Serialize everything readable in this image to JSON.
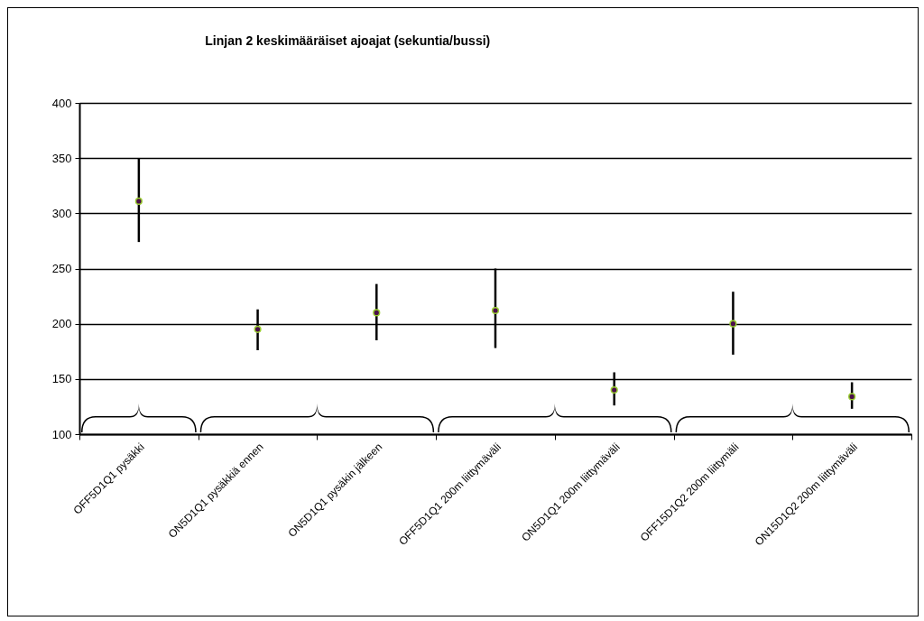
{
  "chart_data": {
    "type": "scatter",
    "title": "Linjan 2 keskimääräiset ajoajat (sekuntia/bussi)",
    "categories": [
      "OFF5D1Q1 pysäkki",
      "ON5D1Q1 pysäkkiä ennen",
      "ON5D1Q1 pysäkin jälkeen",
      "OFF5D1Q1 200m liittymäväli",
      "ON5D1Q1 200m liittymäväli",
      "OFF15D1Q2 200m liittymäli",
      "ON15D1Q2 200m liittymäväli"
    ],
    "values": [
      311,
      195,
      210,
      212,
      140,
      200,
      134
    ],
    "errors": [
      [
        274,
        350
      ],
      [
        176,
        213
      ],
      [
        185,
        236
      ],
      [
        178,
        250
      ],
      [
        126,
        156
      ],
      [
        172,
        229
      ],
      [
        123,
        147
      ]
    ],
    "color": "#4b0f4b",
    "ylim": [
      100,
      400
    ],
    "yticks": [
      100,
      150,
      200,
      250,
      300,
      350,
      400
    ],
    "grid": "y",
    "marker": "circle"
  }
}
